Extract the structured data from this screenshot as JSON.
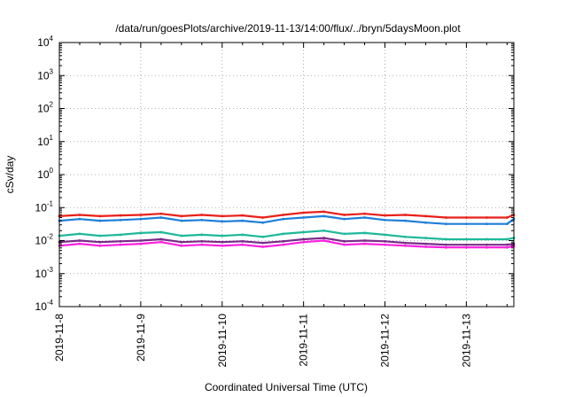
{
  "chart_data": {
    "type": "line",
    "title": "/data/run/goesPlots/archive/2019-11-13/14:00/flux/../bryn/5daysMoon.plot",
    "xlabel": "Coordinated Universal Time (UTC)",
    "ylabel": "cSv/day",
    "x_type": "time",
    "xlim": [
      "2019-11-08T00:00",
      "2019-11-13T14:00"
    ],
    "x_ticks": [
      "2019-11-8",
      "2019-11-9",
      "2019-11-10",
      "2019-11-11",
      "2019-11-12",
      "2019-11-13"
    ],
    "y_scale": "log",
    "ylim": [
      0.0001,
      10000
    ],
    "y_ticks": [
      {
        "base": "10",
        "exp": "4"
      },
      {
        "base": "10",
        "exp": "3"
      },
      {
        "base": "10",
        "exp": "2"
      },
      {
        "base": "10",
        "exp": "1"
      },
      {
        "base": "10",
        "exp": "0"
      },
      {
        "base": "10",
        "exp": "-1"
      },
      {
        "base": "10",
        "exp": "-2"
      },
      {
        "base": "10",
        "exp": "-3"
      },
      {
        "base": "10",
        "exp": "-4"
      }
    ],
    "grid": true,
    "legend": "none",
    "series": [
      {
        "color": "#e8201a",
        "x": [
          "2019-11-08T00:00",
          "2019-11-08T06:00",
          "2019-11-08T12:00",
          "2019-11-08T18:00",
          "2019-11-09T00:00",
          "2019-11-09T06:00",
          "2019-11-09T12:00",
          "2019-11-09T18:00",
          "2019-11-10T00:00",
          "2019-11-10T06:00",
          "2019-11-10T12:00",
          "2019-11-10T18:00",
          "2019-11-11T00:00",
          "2019-11-11T06:00",
          "2019-11-11T12:00",
          "2019-11-11T18:00",
          "2019-11-12T00:00",
          "2019-11-12T06:00",
          "2019-11-12T12:00",
          "2019-11-12T18:00",
          "2019-11-13T00:00",
          "2019-11-13T06:00",
          "2019-11-13T12:00",
          "2019-11-13T14:00"
        ],
        "y": [
          0.055,
          0.06,
          0.055,
          0.058,
          0.06,
          0.065,
          0.055,
          0.06,
          0.055,
          0.058,
          0.05,
          0.06,
          0.07,
          0.075,
          0.06,
          0.065,
          0.058,
          0.06,
          0.055,
          0.05,
          0.05,
          0.05,
          0.05,
          0.06
        ]
      },
      {
        "color": "#1e7fd8",
        "x": [
          "2019-11-08T00:00",
          "2019-11-08T06:00",
          "2019-11-08T12:00",
          "2019-11-08T18:00",
          "2019-11-09T00:00",
          "2019-11-09T06:00",
          "2019-11-09T12:00",
          "2019-11-09T18:00",
          "2019-11-10T00:00",
          "2019-11-10T06:00",
          "2019-11-10T12:00",
          "2019-11-10T18:00",
          "2019-11-11T00:00",
          "2019-11-11T06:00",
          "2019-11-11T12:00",
          "2019-11-11T18:00",
          "2019-11-12T00:00",
          "2019-11-12T06:00",
          "2019-11-12T12:00",
          "2019-11-12T18:00",
          "2019-11-13T00:00",
          "2019-11-13T06:00",
          "2019-11-13T12:00",
          "2019-11-13T14:00"
        ],
        "y": [
          0.04,
          0.045,
          0.04,
          0.042,
          0.045,
          0.05,
          0.04,
          0.042,
          0.038,
          0.04,
          0.035,
          0.045,
          0.05,
          0.055,
          0.045,
          0.05,
          0.042,
          0.04,
          0.035,
          0.032,
          0.032,
          0.032,
          0.032,
          0.045
        ]
      },
      {
        "color": "#1fb89a",
        "x": [
          "2019-11-08T00:00",
          "2019-11-08T06:00",
          "2019-11-08T12:00",
          "2019-11-08T18:00",
          "2019-11-09T00:00",
          "2019-11-09T06:00",
          "2019-11-09T12:00",
          "2019-11-09T18:00",
          "2019-11-10T00:00",
          "2019-11-10T06:00",
          "2019-11-10T12:00",
          "2019-11-10T18:00",
          "2019-11-11T00:00",
          "2019-11-11T06:00",
          "2019-11-11T12:00",
          "2019-11-11T18:00",
          "2019-11-12T00:00",
          "2019-11-12T06:00",
          "2019-11-12T12:00",
          "2019-11-12T18:00",
          "2019-11-13T00:00",
          "2019-11-13T06:00",
          "2019-11-13T12:00",
          "2019-11-13T14:00"
        ],
        "y": [
          0.014,
          0.016,
          0.014,
          0.015,
          0.017,
          0.018,
          0.014,
          0.015,
          0.014,
          0.015,
          0.013,
          0.016,
          0.018,
          0.02,
          0.016,
          0.017,
          0.015,
          0.013,
          0.012,
          0.011,
          0.011,
          0.011,
          0.011,
          0.012
        ]
      },
      {
        "color": "#7a2a8a",
        "x": [
          "2019-11-08T00:00",
          "2019-11-08T06:00",
          "2019-11-08T12:00",
          "2019-11-08T18:00",
          "2019-11-09T00:00",
          "2019-11-09T06:00",
          "2019-11-09T12:00",
          "2019-11-09T18:00",
          "2019-11-10T00:00",
          "2019-11-10T06:00",
          "2019-11-10T12:00",
          "2019-11-10T18:00",
          "2019-11-11T00:00",
          "2019-11-11T06:00",
          "2019-11-11T12:00",
          "2019-11-11T18:00",
          "2019-11-12T00:00",
          "2019-11-12T06:00",
          "2019-11-12T12:00",
          "2019-11-12T18:00",
          "2019-11-13T00:00",
          "2019-11-13T06:00",
          "2019-11-13T12:00",
          "2019-11-13T14:00"
        ],
        "y": [
          0.009,
          0.01,
          0.009,
          0.0095,
          0.01,
          0.011,
          0.009,
          0.0095,
          0.009,
          0.0095,
          0.0085,
          0.0095,
          0.011,
          0.012,
          0.0095,
          0.01,
          0.0095,
          0.0085,
          0.008,
          0.0075,
          0.0075,
          0.0075,
          0.0075,
          0.008
        ]
      },
      {
        "color": "#ff1fe0",
        "x": [
          "2019-11-08T00:00",
          "2019-11-08T06:00",
          "2019-11-08T12:00",
          "2019-11-08T18:00",
          "2019-11-09T00:00",
          "2019-11-09T06:00",
          "2019-11-09T12:00",
          "2019-11-09T18:00",
          "2019-11-10T00:00",
          "2019-11-10T06:00",
          "2019-11-10T12:00",
          "2019-11-10T18:00",
          "2019-11-11T00:00",
          "2019-11-11T06:00",
          "2019-11-11T12:00",
          "2019-11-11T18:00",
          "2019-11-12T00:00",
          "2019-11-12T06:00",
          "2019-11-12T12:00",
          "2019-11-12T18:00",
          "2019-11-13T00:00",
          "2019-11-13T06:00",
          "2019-11-13T12:00",
          "2019-11-13T14:00"
        ],
        "y": [
          0.007,
          0.008,
          0.007,
          0.0075,
          0.008,
          0.009,
          0.007,
          0.0075,
          0.007,
          0.0075,
          0.0065,
          0.0075,
          0.009,
          0.01,
          0.0075,
          0.008,
          0.0075,
          0.007,
          0.0065,
          0.0062,
          0.0062,
          0.0062,
          0.0062,
          0.0068
        ]
      }
    ]
  }
}
